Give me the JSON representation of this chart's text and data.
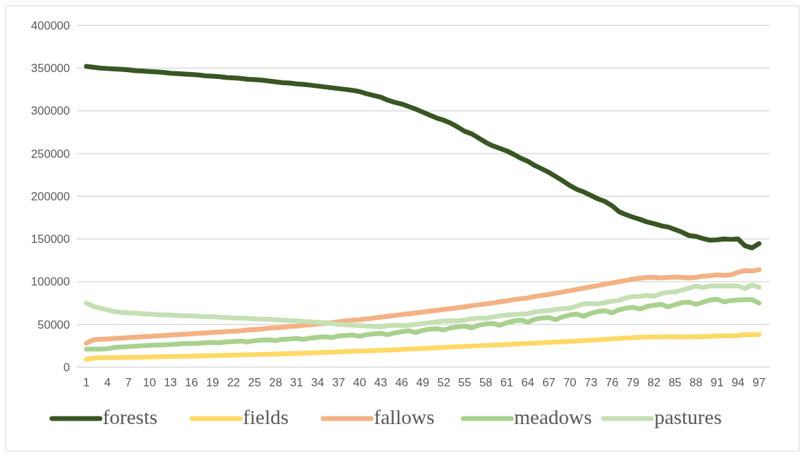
{
  "chart_data": {
    "type": "line",
    "categories": [
      "1",
      null,
      null,
      "4",
      null,
      null,
      "7",
      null,
      null,
      "10",
      null,
      null,
      "13",
      null,
      null,
      "16",
      null,
      null,
      "19",
      null,
      null,
      "22",
      null,
      null,
      "25",
      null,
      null,
      "28",
      null,
      null,
      "31",
      null,
      null,
      "34",
      null,
      null,
      "37",
      null,
      null,
      "40",
      null,
      null,
      "43",
      null,
      null,
      "46",
      null,
      null,
      "49",
      null,
      null,
      "52",
      null,
      null,
      "55",
      null,
      null,
      "58",
      null,
      null,
      "61",
      null,
      null,
      "64",
      null,
      null,
      "67",
      null,
      null,
      "70",
      null,
      null,
      "73",
      null,
      null,
      "76",
      null,
      null,
      "79",
      null,
      null,
      "82",
      null,
      null,
      "85",
      null,
      null,
      "88",
      null,
      null,
      "91",
      null,
      null,
      "94",
      null,
      null,
      "97"
    ],
    "series": [
      {
        "name": "forests",
        "color": "#375623",
        "values": [
          352000,
          351000,
          350000,
          349500,
          349000,
          348500,
          348000,
          347000,
          346500,
          346000,
          345500,
          345000,
          344000,
          343500,
          343000,
          342500,
          342000,
          341000,
          340500,
          340000,
          339000,
          338500,
          338000,
          337000,
          336500,
          336000,
          335000,
          334000,
          333000,
          332500,
          331500,
          331000,
          330000,
          329000,
          328000,
          327000,
          326000,
          325000,
          324000,
          322500,
          320000,
          318000,
          316000,
          312500,
          310000,
          308000,
          305000,
          302000,
          298500,
          295000,
          291500,
          289000,
          285500,
          281000,
          276000,
          273000,
          268000,
          263000,
          259000,
          256000,
          253000,
          249000,
          244500,
          241000,
          236000,
          232000,
          228000,
          223000,
          218000,
          212500,
          208000,
          205000,
          201000,
          197000,
          194000,
          189000,
          182000,
          178500,
          175500,
          173000,
          170000,
          168000,
          165500,
          164000,
          161000,
          158000,
          154000,
          153000,
          150500,
          148500,
          149000,
          150000,
          149500,
          150000,
          142000,
          139500,
          144500
        ]
      },
      {
        "name": "fields",
        "color": "#ffd966",
        "values": [
          9000,
          10500,
          10800,
          11000,
          11000,
          11200,
          11400,
          11500,
          11700,
          11900,
          12000,
          12200,
          12400,
          12500,
          12700,
          12900,
          13000,
          13200,
          13400,
          13600,
          13800,
          14000,
          14200,
          14400,
          14600,
          14800,
          15000,
          15200,
          15500,
          15800,
          16000,
          16300,
          16600,
          16900,
          17200,
          17500,
          17800,
          18100,
          18400,
          18700,
          19000,
          19300,
          19600,
          19900,
          20200,
          20600,
          21000,
          21400,
          21800,
          22200,
          22600,
          23000,
          23400,
          23800,
          24200,
          24600,
          25000,
          25400,
          25800,
          26200,
          26600,
          27000,
          27400,
          27800,
          28200,
          28600,
          29000,
          29400,
          29800,
          30200,
          30600,
          31000,
          31500,
          32000,
          32500,
          33000,
          33500,
          34000,
          34500,
          35000,
          35200,
          35300,
          35400,
          35500,
          35500,
          35300,
          35300,
          35600,
          35800,
          36000,
          36500,
          36500,
          36500,
          37000,
          38000,
          38000,
          38200
        ]
      },
      {
        "name": "fallows",
        "color": "#f4b183",
        "values": [
          28000,
          32000,
          32500,
          33000,
          33500,
          34000,
          34500,
          35000,
          35500,
          36000,
          36500,
          37000,
          37500,
          38000,
          38500,
          39000,
          39500,
          40000,
          40500,
          41000,
          41500,
          42000,
          42500,
          43500,
          44000,
          44500,
          45500,
          46000,
          46500,
          47500,
          48000,
          49000,
          49500,
          50500,
          51000,
          52000,
          53000,
          54000,
          55000,
          55500,
          56500,
          57500,
          58500,
          59500,
          60500,
          61500,
          62500,
          63500,
          64500,
          65500,
          66500,
          67500,
          68500,
          69500,
          70500,
          72000,
          73000,
          74000,
          75000,
          76500,
          77500,
          79000,
          80000,
          81000,
          82500,
          84000,
          85000,
          86500,
          88000,
          89500,
          91000,
          92500,
          94000,
          95500,
          97000,
          98500,
          100000,
          101500,
          103000,
          104000,
          105000,
          105000,
          104500,
          105000,
          105500,
          105000,
          104500,
          105000,
          106500,
          107000,
          108000,
          107500,
          108000,
          111000,
          113000,
          112500,
          114000
        ]
      },
      {
        "name": "meadows",
        "color": "#a9d18e",
        "values": [
          21000,
          21000,
          21000,
          21500,
          23000,
          23500,
          24000,
          24500,
          25000,
          25500,
          26000,
          26000,
          26500,
          27000,
          27500,
          27500,
          28000,
          28500,
          29000,
          28500,
          29500,
          30000,
          30500,
          29500,
          31000,
          31500,
          32000,
          31000,
          32500,
          33000,
          33500,
          32500,
          34000,
          35000,
          35500,
          34500,
          36500,
          37000,
          37500,
          36000,
          38000,
          39000,
          39500,
          38000,
          40000,
          41500,
          42500,
          40500,
          43000,
          44500,
          45000,
          43500,
          46000,
          47000,
          48000,
          46000,
          49000,
          50500,
          51000,
          49000,
          52000,
          54000,
          55000,
          52500,
          56000,
          57500,
          58000,
          55500,
          59000,
          61000,
          62000,
          59500,
          63000,
          65000,
          66000,
          63500,
          67000,
          69000,
          70000,
          68000,
          71000,
          72500,
          73500,
          70500,
          73000,
          75500,
          76000,
          73500,
          76000,
          78500,
          79500,
          76500,
          78000,
          78500,
          79000,
          79000,
          75000
        ]
      },
      {
        "name": "pastures",
        "color": "#c5e0b4",
        "values": [
          75000,
          71000,
          69000,
          67000,
          65000,
          64000,
          63500,
          63000,
          62500,
          62000,
          61500,
          61000,
          61000,
          60500,
          60000,
          60000,
          59500,
          59000,
          59000,
          58500,
          58000,
          57500,
          57500,
          57000,
          56500,
          56000,
          56000,
          55500,
          55000,
          54500,
          54000,
          53500,
          53000,
          52500,
          52000,
          51000,
          50000,
          49500,
          49000,
          48500,
          48000,
          47500,
          47000,
          48500,
          49000,
          48500,
          49000,
          50000,
          51000,
          52000,
          53000,
          54000,
          54000,
          54000,
          55000,
          56500,
          57500,
          57000,
          58500,
          60000,
          61000,
          61500,
          62000,
          62500,
          64500,
          65500,
          66000,
          67500,
          68500,
          69000,
          71500,
          74000,
          74500,
          74000,
          75500,
          77000,
          78000,
          81000,
          82500,
          83000,
          84000,
          83000,
          86000,
          87500,
          88000,
          90000,
          92500,
          95000,
          93000,
          95000,
          95000,
          95000,
          95000,
          95000,
          92000,
          96000,
          93500
        ]
      }
    ],
    "ylim": [
      0,
      400000
    ],
    "yticks": [
      0,
      50000,
      100000,
      150000,
      200000,
      250000,
      300000,
      350000,
      400000
    ],
    "grid": "y",
    "legend": "bottom"
  }
}
